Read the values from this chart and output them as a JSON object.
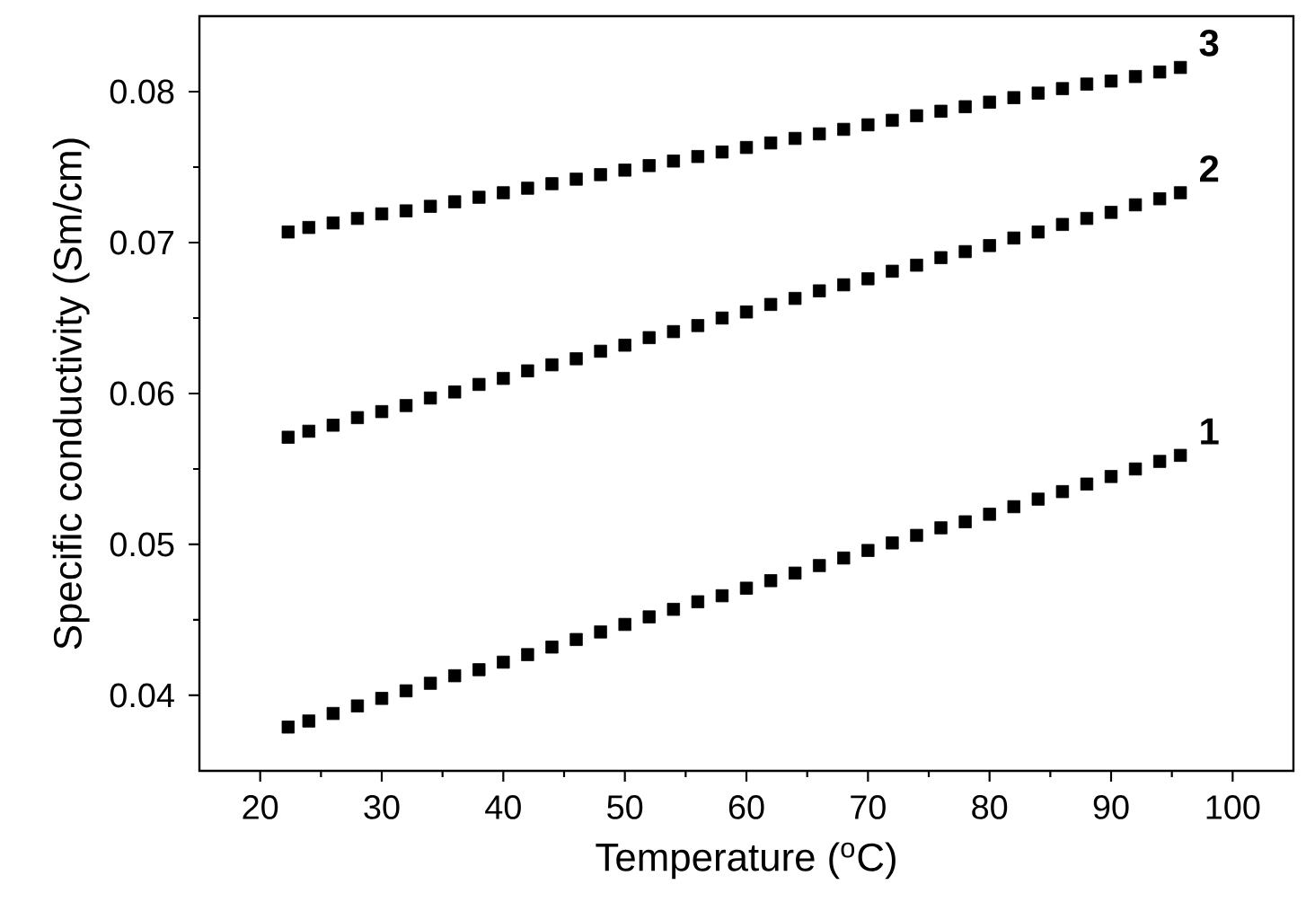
{
  "chart_data": {
    "type": "scatter",
    "xlabel": "Temperature ($^{o}$C)",
    "ylabel": "Specific conductivity (Sm/cm)",
    "xlim": [
      15,
      105
    ],
    "ylim": [
      0.035,
      0.085
    ],
    "xticks": [
      20,
      30,
      40,
      50,
      60,
      70,
      80,
      90,
      100
    ],
    "yticks": [
      0.04,
      0.05,
      0.06,
      0.07,
      0.08
    ],
    "marker": "square",
    "grid": false,
    "legend": false,
    "x": [
      22.3,
      24,
      26,
      28,
      30,
      32,
      34,
      36,
      38,
      40,
      42,
      44,
      46,
      48,
      50,
      52,
      54,
      56,
      58,
      60,
      62,
      64,
      66,
      68,
      70,
      72,
      74,
      76,
      78,
      80,
      82,
      84,
      86,
      88,
      90,
      92,
      94,
      95.7
    ],
    "series": [
      {
        "name": "1",
        "color": "#000000",
        "values": [
          0.0379,
          0.0383,
          0.0388,
          0.0393,
          0.0398,
          0.0403,
          0.0408,
          0.0413,
          0.0417,
          0.0422,
          0.0427,
          0.0432,
          0.0437,
          0.0442,
          0.0447,
          0.0452,
          0.0457,
          0.0462,
          0.0466,
          0.0471,
          0.0476,
          0.0481,
          0.0486,
          0.0491,
          0.0496,
          0.0501,
          0.0506,
          0.0511,
          0.0515,
          0.052,
          0.0525,
          0.053,
          0.0535,
          0.054,
          0.0545,
          0.055,
          0.0555,
          0.0559
        ]
      },
      {
        "name": "2",
        "color": "#000000",
        "values": [
          0.0571,
          0.0575,
          0.0579,
          0.0584,
          0.0588,
          0.0592,
          0.0597,
          0.0601,
          0.0606,
          0.061,
          0.0615,
          0.0619,
          0.0623,
          0.0628,
          0.0632,
          0.0637,
          0.0641,
          0.0645,
          0.065,
          0.0654,
          0.0659,
          0.0663,
          0.0668,
          0.0672,
          0.0676,
          0.0681,
          0.0685,
          0.069,
          0.0694,
          0.0698,
          0.0703,
          0.0707,
          0.0712,
          0.0716,
          0.072,
          0.0725,
          0.0729,
          0.0733
        ]
      },
      {
        "name": "3",
        "color": "#000000",
        "values": [
          0.0707,
          0.071,
          0.0713,
          0.0716,
          0.0719,
          0.0721,
          0.0724,
          0.0727,
          0.073,
          0.0733,
          0.0736,
          0.0739,
          0.0742,
          0.0745,
          0.0748,
          0.0751,
          0.0754,
          0.0757,
          0.076,
          0.0763,
          0.0766,
          0.0769,
          0.0772,
          0.0775,
          0.0778,
          0.0781,
          0.0784,
          0.0787,
          0.079,
          0.0793,
          0.0796,
          0.0799,
          0.0802,
          0.0805,
          0.0807,
          0.081,
          0.0813,
          0.0816
        ]
      }
    ]
  }
}
